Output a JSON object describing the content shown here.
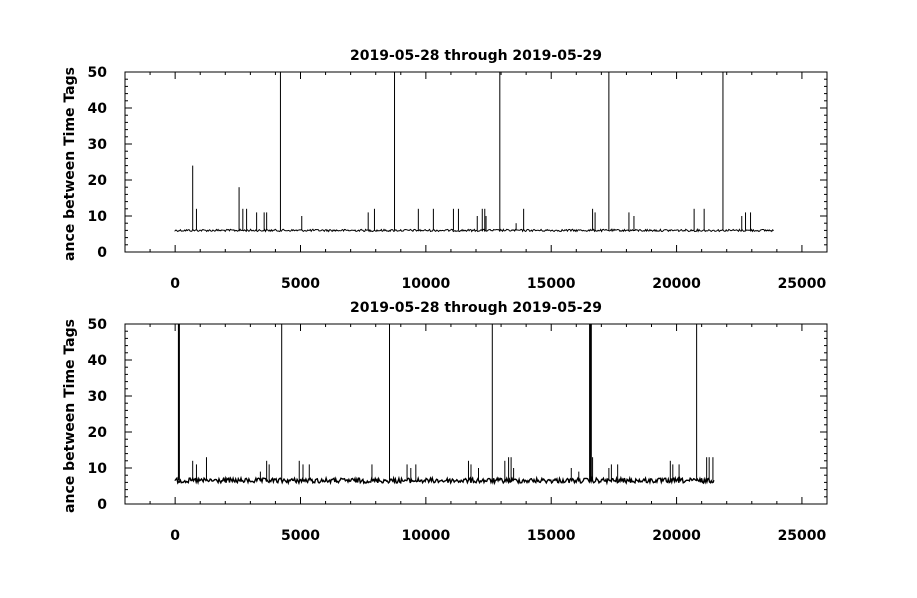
{
  "chart_data": [
    {
      "type": "line",
      "title": "2019-05-28 through 2019-05-29",
      "ylabel": "ance between Time Tags",
      "xlabel": "",
      "xlim": [
        -2000,
        26000
      ],
      "ylim": [
        0,
        50
      ],
      "xticks": [
        0,
        5000,
        10000,
        15000,
        20000,
        25000
      ],
      "xtick_labels": [
        "0",
        "5000",
        "10000",
        "15000",
        "20000",
        "25000"
      ],
      "yticks": [
        0,
        10,
        20,
        30,
        40,
        50
      ],
      "ytick_labels": [
        "0",
        "10",
        "20",
        "30",
        "40",
        "50"
      ],
      "grid": false,
      "baseline": 6,
      "x_range": [
        0,
        23900
      ],
      "series": [
        {
          "x": [
            700,
            850,
            2550,
            2700,
            2850,
            3250,
            3550,
            3650,
            5050,
            7700,
            7950,
            9700,
            10300,
            11100,
            11300,
            12050,
            12250,
            12350,
            12400,
            13600,
            13900,
            16650,
            16750,
            18100,
            18300,
            20700,
            21100,
            22600,
            22750,
            22950
          ],
          "y": [
            24,
            12,
            18,
            12,
            12,
            11,
            11,
            11,
            10,
            11,
            12,
            12,
            12,
            12,
            12,
            10,
            12,
            12,
            10,
            8,
            12,
            12,
            11,
            11,
            10,
            12,
            12,
            10,
            11,
            11
          ]
        }
      ],
      "vertical_lines": [
        4200,
        8750,
        12950,
        17300,
        21850
      ]
    },
    {
      "type": "line",
      "title": "2019-05-28 through 2019-05-29",
      "ylabel": "ance between Time Tags",
      "xlabel": "",
      "xlim": [
        -2000,
        26000
      ],
      "ylim": [
        0,
        50
      ],
      "xticks": [
        0,
        5000,
        10000,
        15000,
        20000,
        25000
      ],
      "xtick_labels": [
        "0",
        "5000",
        "10000",
        "15000",
        "20000",
        "25000"
      ],
      "yticks": [
        0,
        10,
        20,
        30,
        40,
        50
      ],
      "ytick_labels": [
        "0",
        "10",
        "20",
        "30",
        "40",
        "50"
      ],
      "grid": false,
      "baseline": 6.5,
      "x_range": [
        0,
        21500
      ],
      "series": [
        {
          "x": [
            150,
            700,
            850,
            1250,
            3400,
            3650,
            3750,
            4950,
            5100,
            5350,
            7850,
            9250,
            9400,
            9600,
            11700,
            11800,
            12100,
            13150,
            13300,
            13400,
            13500,
            15800,
            16100,
            16550,
            16650,
            17300,
            17400,
            17650,
            19750,
            19850,
            20100,
            21200,
            21300,
            21450
          ],
          "y": [
            50,
            12,
            11,
            13,
            9,
            12,
            11,
            12,
            11,
            11,
            11,
            11,
            10,
            11,
            12,
            11,
            10,
            12,
            13,
            13,
            10,
            10,
            9,
            50,
            13,
            10,
            11,
            11,
            12,
            11,
            11,
            13,
            13,
            13
          ]
        }
      ],
      "vertical_lines": [
        4250,
        8550,
        12650,
        16600,
        20800
      ]
    }
  ]
}
